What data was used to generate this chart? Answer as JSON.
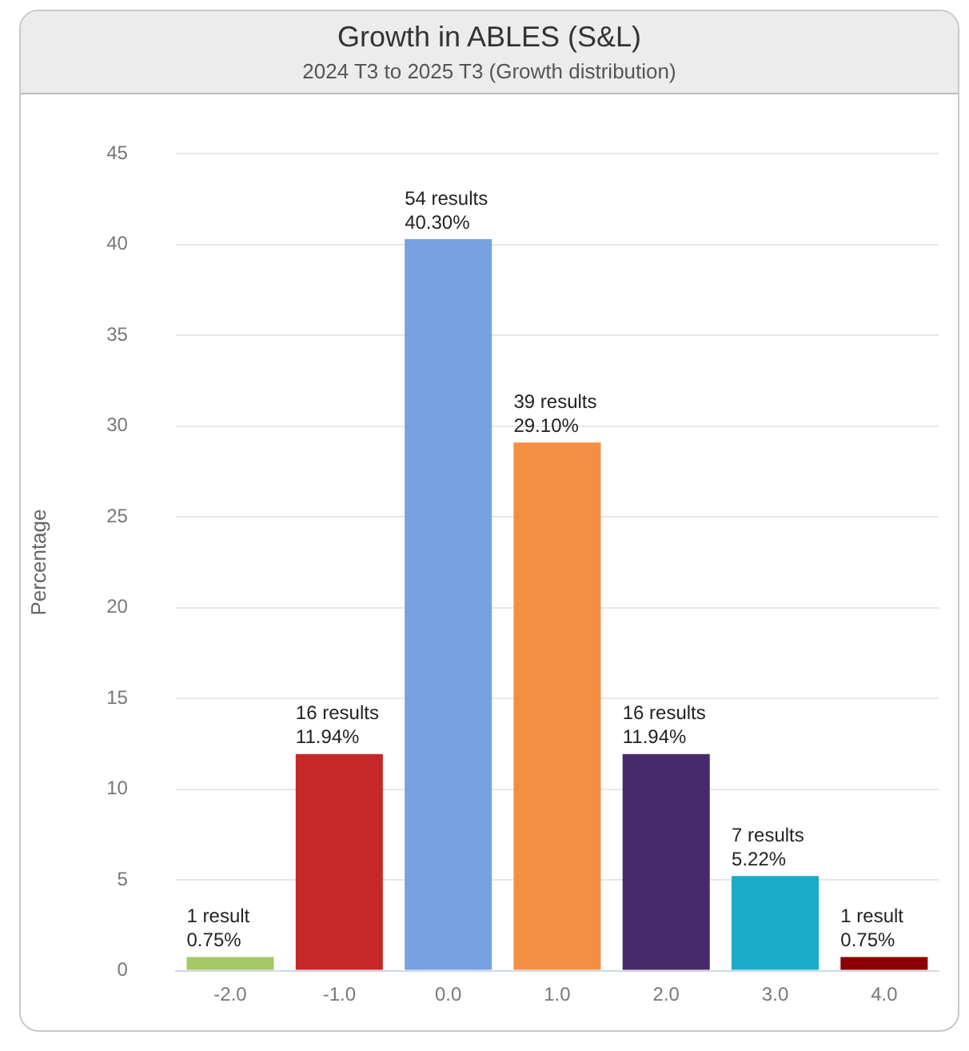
{
  "chart_data": {
    "type": "bar",
    "title": "Growth in ABLES (S&L)",
    "subtitle": "2024 T3 to 2025 T3 (Growth distribution)",
    "ylabel": "Percentage",
    "categories": [
      "-2.0",
      "-1.0",
      "0.0",
      "1.0",
      "2.0",
      "3.0",
      "4.0"
    ],
    "values": [
      0.75,
      11.94,
      40.3,
      29.1,
      11.94,
      5.22,
      0.75
    ],
    "colors": [
      "#a3c865",
      "#c62828",
      "#77a1e2",
      "#f28f43",
      "#472a6b",
      "#1aabcb",
      "#8b0000"
    ],
    "value_labels": [
      "1 result\n0.75%",
      "16 results\n11.94%",
      "54 results\n40.30%",
      "39 results\n29.10%",
      "16 results\n11.94%",
      "7 results\n5.22%",
      "1 result\n0.75%"
    ],
    "ylim": [
      0,
      45
    ],
    "yticks": [
      0,
      5,
      10,
      15,
      20,
      25,
      30,
      35,
      40,
      45
    ],
    "grid": "y",
    "legend": false
  }
}
